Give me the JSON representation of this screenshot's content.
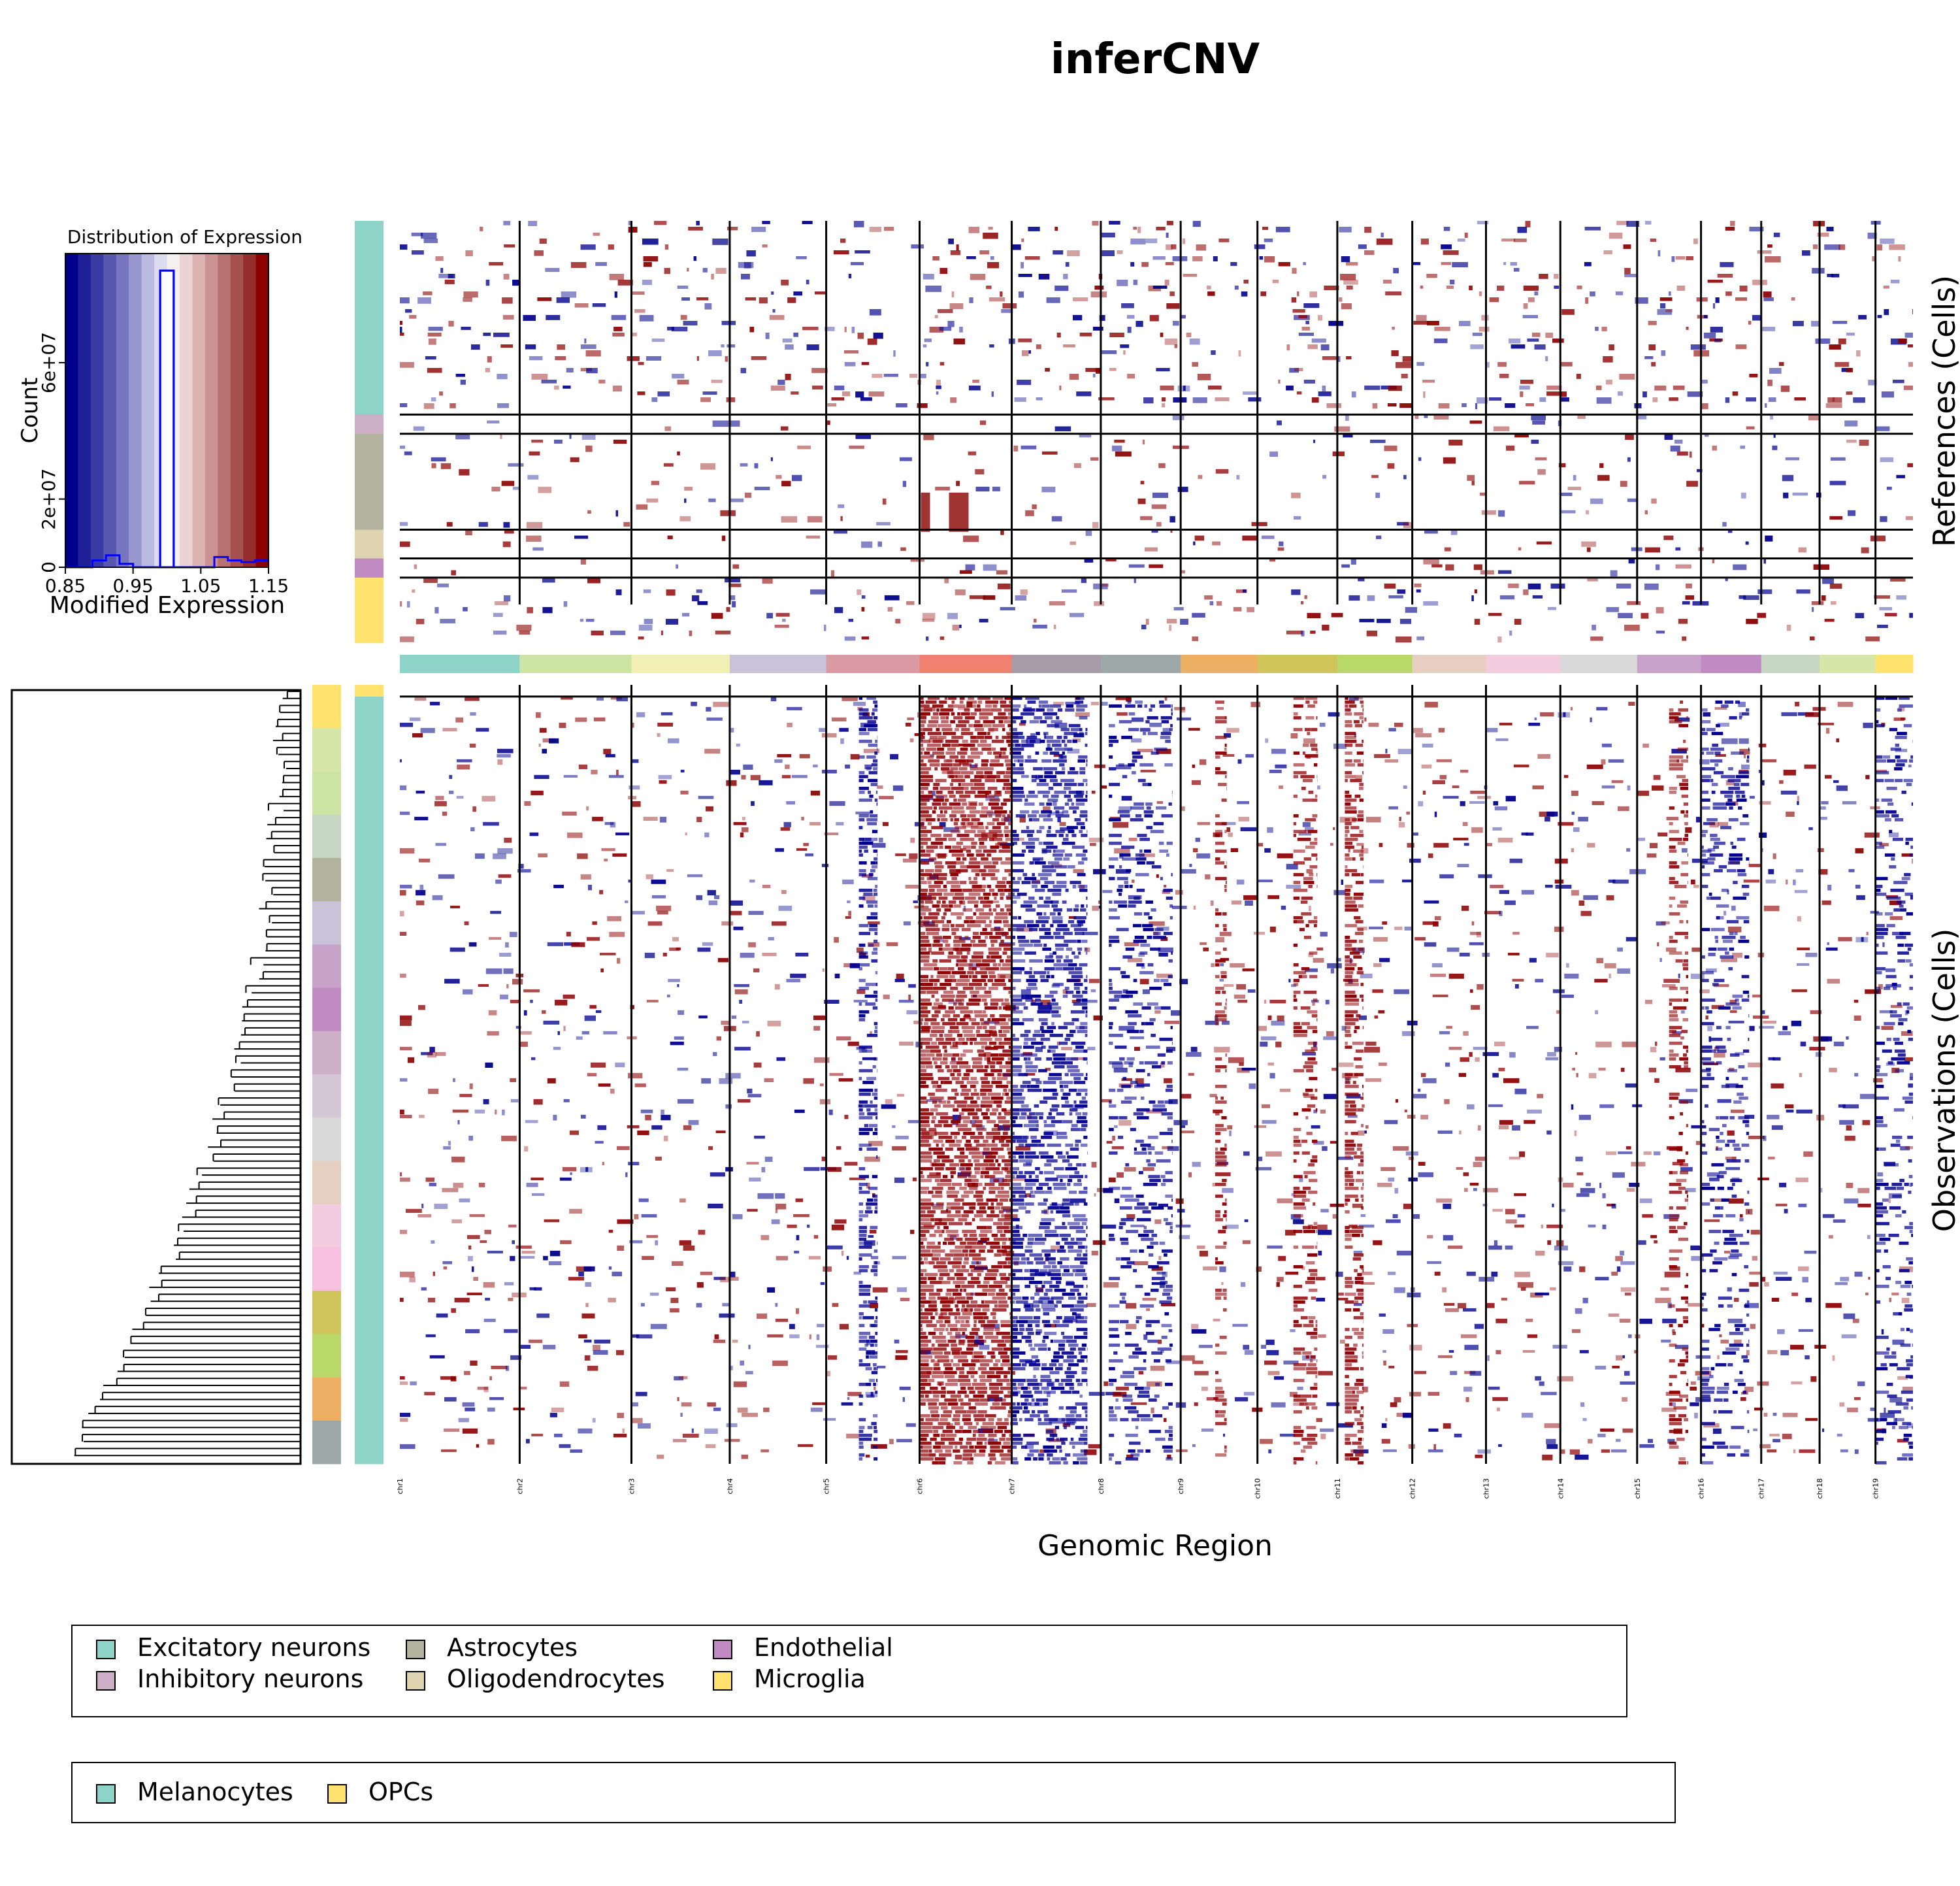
{
  "title": "inferCNV",
  "xlabel": "Genomic Region",
  "references_label": "References (Cells)",
  "observations_label": "Observations (Cells)",
  "chart_data": [
    {
      "type": "histogram",
      "title": "Distribution of Expression",
      "xlabel": "Modified Expression",
      "ylabel": "Count",
      "xlim": [
        0.85,
        1.15
      ],
      "x_ticks": [
        "0.85",
        "0.95",
        "1.05",
        "1.15"
      ],
      "y_ticks": [
        {
          "value": 0,
          "label": "0"
        },
        {
          "value": 20000000,
          "label": "2e+07"
        },
        {
          "value": 60000000,
          "label": "6e+07"
        }
      ],
      "ylim": [
        0,
        92000000
      ],
      "color_bands": [
        "#00008B",
        "#1F1F96",
        "#3A3AA3",
        "#5757B0",
        "#7676BE",
        "#9898CF",
        "#BBBBE0",
        "#DCDCEE",
        "#F4F0F0",
        "#EBD3D3",
        "#DCB4B4",
        "#CB9393",
        "#B97272",
        "#A75050",
        "#962D2D",
        "#8B0000"
      ],
      "bins": [
        {
          "x0": 0.85,
          "x1": 0.87,
          "count": 0
        },
        {
          "x0": 0.87,
          "x1": 0.89,
          "count": 0
        },
        {
          "x0": 0.89,
          "x1": 0.91,
          "count": 2000000
        },
        {
          "x0": 0.91,
          "x1": 0.93,
          "count": 3500000
        },
        {
          "x0": 0.93,
          "x1": 0.95,
          "count": 1000000
        },
        {
          "x0": 0.95,
          "x1": 0.97,
          "count": 0
        },
        {
          "x0": 0.97,
          "x1": 0.99,
          "count": 0
        },
        {
          "x0": 0.99,
          "x1": 1.01,
          "count": 87000000
        },
        {
          "x0": 1.01,
          "x1": 1.03,
          "count": 0
        },
        {
          "x0": 1.03,
          "x1": 1.05,
          "count": 0
        },
        {
          "x0": 1.05,
          "x1": 1.07,
          "count": 0
        },
        {
          "x0": 1.07,
          "x1": 1.09,
          "count": 3000000
        },
        {
          "x0": 1.09,
          "x1": 1.11,
          "count": 2000000
        },
        {
          "x0": 1.11,
          "x1": 1.13,
          "count": 1500000
        },
        {
          "x0": 1.13,
          "x1": 1.15,
          "count": 2000000
        }
      ],
      "line_color": "#0000FF"
    },
    {
      "type": "heatmap",
      "chromosomes": [
        {
          "label": "chr1",
          "length": 195,
          "color": "#8DD3C7"
        },
        {
          "label": "chr2",
          "length": 182,
          "color": "#CCE5A5"
        },
        {
          "label": "chr3",
          "length": 160,
          "color": "#F2EFB4"
        },
        {
          "label": "chr4",
          "length": 157,
          "color": "#C9C3D9"
        },
        {
          "label": "chr5",
          "length": 152,
          "color": "#D99AA3"
        },
        {
          "label": "chr6",
          "length": 150,
          "color": "#F08070"
        },
        {
          "label": "chr7",
          "length": 145,
          "color": "#A89BA8"
        },
        {
          "label": "chr8",
          "length": 130,
          "color": "#9EA8A8"
        },
        {
          "label": "chr9",
          "length": 125,
          "color": "#EDAF64"
        },
        {
          "label": "chr10",
          "length": 130,
          "color": "#D0C55A"
        },
        {
          "label": "chr11",
          "length": 122,
          "color": "#B8D86A"
        },
        {
          "label": "chr12",
          "length": 120,
          "color": "#E6CEC0"
        },
        {
          "label": "chr13",
          "length": 121,
          "color": "#F3CCE0"
        },
        {
          "label": "chr14",
          "length": 125,
          "color": "#D9D9D9"
        },
        {
          "label": "chr15",
          "length": 104,
          "color": "#C9A2C9"
        },
        {
          "label": "chr16",
          "length": 98,
          "color": "#C08BC2"
        },
        {
          "label": "chr17",
          "length": 95,
          "color": "#C5D6C2"
        },
        {
          "label": "chr18",
          "length": 91,
          "color": "#D5E6A8"
        },
        {
          "label": "chr19",
          "length": 61,
          "color": "#FFE36E"
        }
      ],
      "reference_groups": [
        {
          "label": "Excitatory neurons",
          "fraction": 0.505,
          "color": "#8DD3C7"
        },
        {
          "label": "Inhibitory neurons",
          "fraction": 0.05,
          "color": "#CDAFC8"
        },
        {
          "label": "Astrocytes",
          "fraction": 0.25,
          "color": "#B2B29E"
        },
        {
          "label": "Oligodendrocytes",
          "fraction": 0.075,
          "color": "#DFD4B0"
        },
        {
          "label": "Endothelial",
          "fraction": 0.05,
          "color": "#C08BC2"
        },
        {
          "label": "Microglia",
          "fraction": 0.17,
          "color": "#FFE36E"
        }
      ],
      "observation_groups": [
        {
          "label": "OPCs",
          "fraction": 0.015,
          "color": "#FFE36E"
        },
        {
          "label": "Melanocytes",
          "fraction": 0.985,
          "color": "#8DD3C7"
        }
      ],
      "observation_cluster_colors": [
        "#FFE36E",
        "#D5E6A8",
        "#CCE5A5",
        "#C5D6C2",
        "#B2B29E",
        "#C9C3D9",
        "#C9A2C9",
        "#C08BC2",
        "#CDAFC8",
        "#D5C7D5",
        "#D9D9D9",
        "#E6CEC0",
        "#F3CCE0",
        "#F7C0E0",
        "#D0C55A",
        "#B8D86A",
        "#EDAF64",
        "#9EA8A8"
      ],
      "cnv_features": [
        {
          "chr": "chr6",
          "start": 0.0,
          "end": 1.0,
          "state": "gain",
          "intensity": 0.9
        },
        {
          "chr": "chr7",
          "start": 0.0,
          "end": 0.85,
          "state": "loss",
          "intensity": 0.65
        },
        {
          "chr": "chr5",
          "start": 0.35,
          "end": 0.55,
          "state": "loss",
          "intensity": 0.55
        },
        {
          "chr": "chr11",
          "start": 0.1,
          "end": 0.35,
          "state": "gain",
          "intensity": 0.6
        },
        {
          "chr": "chr10",
          "start": 0.45,
          "end": 0.75,
          "state": "gain",
          "intensity": 0.4
        },
        {
          "chr": "chr9",
          "start": 0.45,
          "end": 0.6,
          "state": "gain",
          "intensity": 0.4
        },
        {
          "chr": "chr8",
          "start": 0.1,
          "end": 0.9,
          "state": "loss",
          "intensity": 0.3
        },
        {
          "chr": "chr16",
          "start": 0.0,
          "end": 0.8,
          "state": "loss",
          "intensity": 0.3
        },
        {
          "chr": "chr15",
          "start": 0.5,
          "end": 0.8,
          "state": "gain",
          "intensity": 0.35
        },
        {
          "chr": "chr19",
          "start": 0.0,
          "end": 1.0,
          "state": "loss",
          "intensity": 0.3
        }
      ]
    }
  ],
  "legend_references": [
    "Excitatory neurons",
    "Inhibitory neurons",
    "Astrocytes",
    "Oligodendrocytes",
    "Endothelial",
    "Microglia"
  ],
  "legend_observations": [
    "Melanocytes",
    "OPCs"
  ],
  "colors": {
    "gain": "#8B0000",
    "loss": "#00008B",
    "neutral": "#FFFFFF",
    "divider": "#000000"
  }
}
